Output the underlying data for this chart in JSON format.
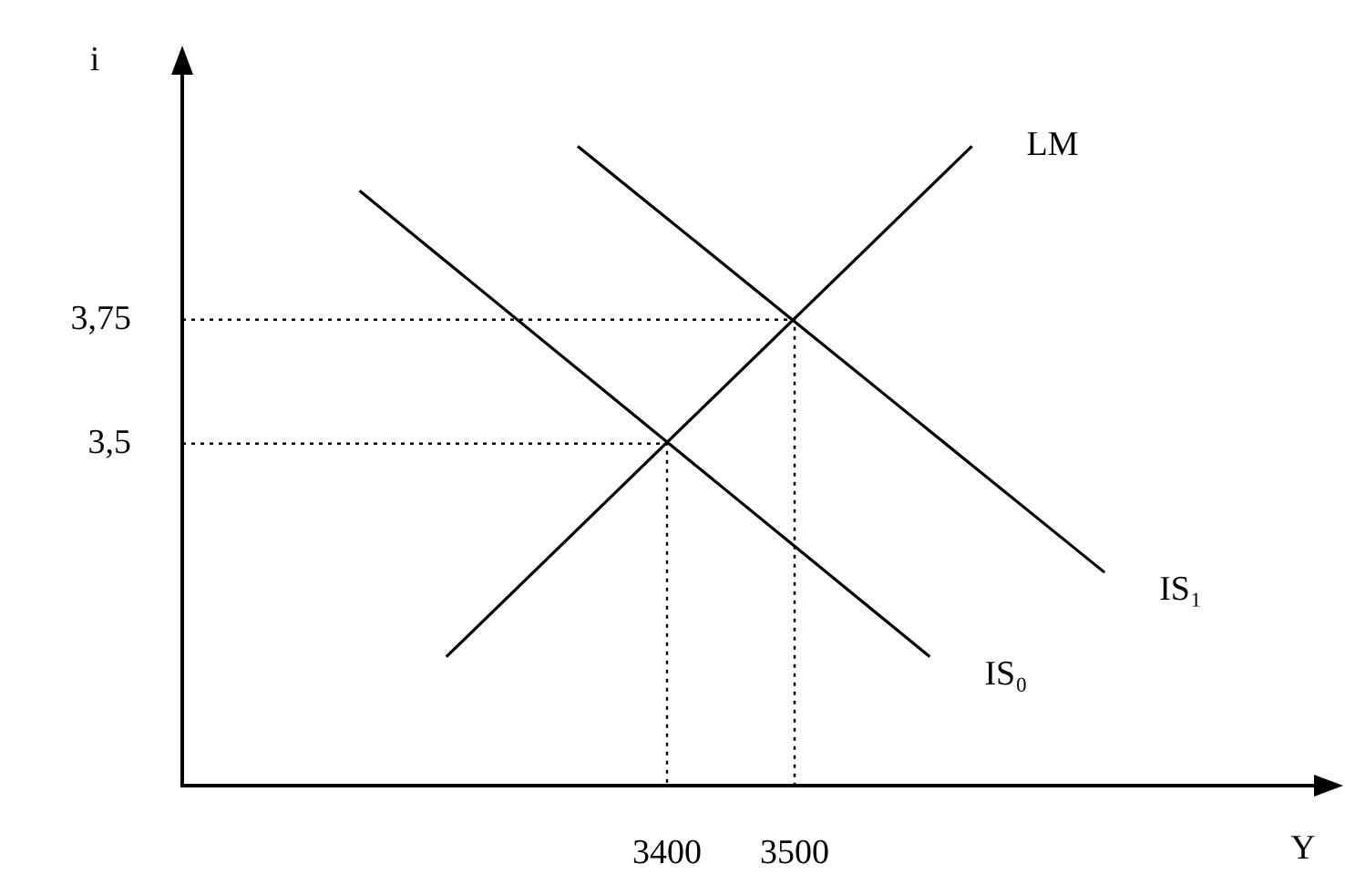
{
  "chart_data": {
    "type": "line",
    "xlabel": "Y",
    "ylabel": "i",
    "xlim": [
      3020,
      3910
    ],
    "ylim": [
      2.81,
      4.25
    ],
    "xticks": [
      3400,
      3500
    ],
    "yticks": [
      {
        "value": 3.5,
        "label": "3,5"
      },
      {
        "value": 3.75,
        "label": "3,75"
      }
    ],
    "grid": false,
    "legend": false,
    "marker": "none",
    "series": [
      {
        "name": "LM",
        "color": "#000000",
        "x": [
          3227,
          3639
        ],
        "values": [
          3.07,
          4.1
        ]
      },
      {
        "name": "IS₀",
        "color": "#000000",
        "x": [
          3159,
          3606
        ],
        "values": [
          4.01,
          3.07
        ]
      },
      {
        "name": "IS₁",
        "color": "#000000",
        "x": [
          3330,
          3743
        ],
        "values": [
          4.1,
          3.24
        ]
      },
      {
        "color": "#000000",
        "line_style": "dotted",
        "x": [
          3020,
          3400,
          3400
        ],
        "values": [
          3.5,
          3.5,
          2.81
        ]
      },
      {
        "color": "#000000",
        "line_style": "dotted",
        "x": [
          3020,
          3500,
          3500
        ],
        "values": [
          3.75,
          3.75,
          2.81
        ]
      }
    ]
  }
}
